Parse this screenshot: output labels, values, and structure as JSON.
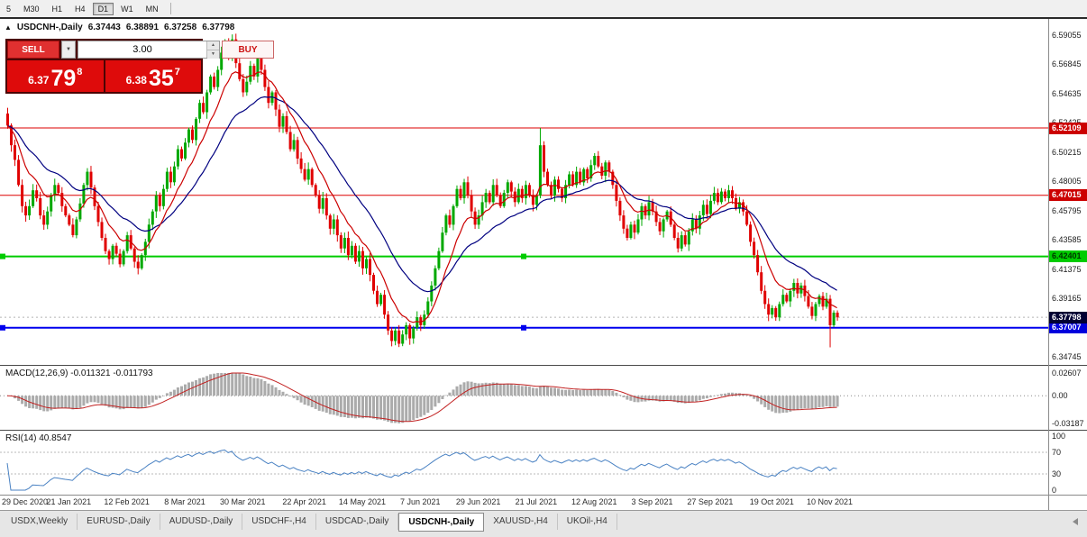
{
  "toolbar": {
    "buttons": [
      {
        "label": "5",
        "selected": false
      },
      {
        "label": "M30",
        "selected": false
      },
      {
        "label": "H1",
        "selected": false
      },
      {
        "label": "H4",
        "selected": false
      },
      {
        "label": "D1",
        "selected": true
      },
      {
        "label": "W1",
        "selected": false
      },
      {
        "label": "MN",
        "selected": false
      }
    ]
  },
  "chart": {
    "window_icon": "▲",
    "symbol": "USDCNH-,Daily",
    "ohlc": {
      "open": "6.37443",
      "high": "6.38891",
      "low": "6.37258",
      "close": "6.37798"
    },
    "trade_panel": {
      "sell_label": "SELL",
      "buy_label": "BUY",
      "lot_value": "3.00",
      "dropdown_icon": "▼",
      "spin_up_icon": "▲",
      "spin_down_icon": "▼",
      "sell_price": {
        "prefix": "6.37",
        "big": "79",
        "sup": "8"
      },
      "buy_price": {
        "prefix": "6.38",
        "big": "35",
        "sup": "7"
      }
    },
    "price_axis_labels": [
      "6.59055",
      "6.56845",
      "6.54635",
      "6.52425",
      "6.50215",
      "6.48005",
      "6.45795",
      "6.43585",
      "6.41375",
      "6.39165",
      "6.36955",
      "6.34745"
    ],
    "axis": {
      "top_price": 6.59055,
      "bottom_price": 6.34745
    },
    "hlines": [
      {
        "price": 6.52109,
        "label": "6.52109",
        "color": "#dd0000",
        "tag_bg": "#cc0000",
        "tag_fg": "#ffffff",
        "width": 1,
        "handle": false
      },
      {
        "price": 6.47015,
        "label": "6.47015",
        "color": "#dd0000",
        "tag_bg": "#cc0000",
        "tag_fg": "#ffffff",
        "width": 1,
        "handle": false
      },
      {
        "price": 6.42401,
        "label": "6.42401",
        "color": "#00cc00",
        "tag_bg": "#00cc00",
        "tag_fg": "#003300",
        "width": 2,
        "handle": true
      },
      {
        "price": 6.37007,
        "label": "6.37007",
        "color": "#0000ee",
        "tag_bg": "#0000dd",
        "tag_fg": "#ffffff",
        "width": 2,
        "handle": true
      }
    ],
    "current_price": {
      "value": 6.37798,
      "label": "6.37798",
      "tag_bg": "#000033",
      "tag_fg": "#ffffff"
    }
  },
  "chart_data": {
    "type": "candlestick",
    "symbol": "USDCNH",
    "timeframe": "Daily",
    "title": "USDCNH-,Daily",
    "ylim": [
      6.34745,
      6.59055
    ],
    "first_open": 6.532,
    "closes": [
      6.523,
      6.508,
      6.497,
      6.478,
      6.462,
      6.455,
      6.462,
      6.474,
      6.468,
      6.455,
      6.448,
      6.458,
      6.47,
      6.478,
      6.472,
      6.462,
      6.455,
      6.448,
      6.44,
      6.452,
      6.464,
      6.478,
      6.488,
      6.476,
      6.462,
      6.45,
      6.438,
      6.428,
      6.422,
      6.432,
      6.426,
      6.418,
      6.428,
      6.44,
      6.43,
      6.42,
      6.415,
      6.425,
      6.435,
      6.448,
      6.458,
      6.47,
      6.462,
      6.475,
      6.488,
      6.48,
      6.492,
      6.505,
      6.498,
      6.51,
      6.52,
      6.512,
      6.528,
      6.54,
      6.533,
      6.548,
      6.56,
      6.552,
      6.565,
      6.578,
      6.585,
      6.575,
      6.588,
      6.57,
      6.558,
      6.548,
      6.556,
      6.568,
      6.56,
      6.574,
      6.565,
      6.552,
      6.54,
      6.548,
      6.535,
      6.522,
      6.53,
      6.518,
      6.505,
      6.512,
      6.498,
      6.49,
      6.482,
      6.49,
      6.478,
      6.47,
      6.46,
      6.468,
      6.455,
      6.445,
      6.452,
      6.44,
      6.43,
      6.438,
      6.425,
      6.432,
      6.42,
      6.428,
      6.415,
      6.422,
      6.41,
      6.398,
      6.388,
      6.395,
      6.38,
      6.368,
      6.36,
      6.368,
      6.358,
      6.365,
      6.372,
      6.362,
      6.37,
      6.378,
      6.372,
      6.38,
      6.39,
      6.402,
      6.415,
      6.428,
      6.442,
      6.455,
      6.448,
      6.462,
      6.475,
      6.468,
      6.48,
      6.47,
      6.458,
      6.448,
      6.455,
      6.465,
      6.472,
      6.465,
      6.478,
      6.47,
      6.462,
      6.472,
      6.48,
      6.473,
      6.465,
      6.475,
      6.468,
      6.478,
      6.47,
      6.463,
      6.47,
      6.508,
      6.488,
      6.478,
      6.47,
      6.482,
      6.475,
      6.468,
      6.478,
      6.486,
      6.478,
      6.488,
      6.48,
      6.49,
      6.483,
      6.493,
      6.5,
      6.492,
      6.485,
      6.495,
      6.488,
      6.478,
      6.466,
      6.455,
      6.445,
      6.438,
      6.448,
      6.442,
      6.452,
      6.462,
      6.455,
      6.465,
      6.458,
      6.45,
      6.443,
      6.452,
      6.458,
      6.448,
      6.438,
      6.43,
      6.44,
      6.433,
      6.443,
      6.452,
      6.445,
      6.455,
      6.463,
      6.456,
      6.466,
      6.472,
      6.465,
      6.473,
      6.468,
      6.474,
      6.468,
      6.46,
      6.465,
      6.458,
      6.448,
      6.435,
      6.425,
      6.412,
      6.398,
      6.388,
      6.38,
      6.385,
      6.378,
      6.388,
      6.395,
      6.39,
      6.398,
      6.404,
      6.396,
      6.402,
      6.394,
      6.386,
      6.379,
      6.388,
      6.394,
      6.386,
      6.392,
      6.372,
      6.3815,
      6.37798
    ],
    "wick_overrides": {
      "62": {
        "high": 6.5918
      },
      "106": {
        "low": 6.356
      },
      "108": {
        "low": 6.3555
      },
      "147": {
        "high": 6.5211
      },
      "227": {
        "low": 6.3553
      }
    },
    "x_labels": [
      {
        "text": "29 Dec 2020",
        "i": 0
      },
      {
        "text": "21 Jan 2021",
        "i": 17
      },
      {
        "text": "12 Feb 2021",
        "i": 33
      },
      {
        "text": "8 Mar 2021",
        "i": 49
      },
      {
        "text": "30 Mar 2021",
        "i": 65
      },
      {
        "text": "22 Apr 2021",
        "i": 82
      },
      {
        "text": "14 May 2021",
        "i": 98
      },
      {
        "text": "7 Jun 2021",
        "i": 114
      },
      {
        "text": "29 Jun 2021",
        "i": 130
      },
      {
        "text": "21 Jul 2021",
        "i": 146
      },
      {
        "text": "12 Aug 2021",
        "i": 162
      },
      {
        "text": "3 Sep 2021",
        "i": 178
      },
      {
        "text": "27 Sep 2021",
        "i": 194
      },
      {
        "text": "19 Oct 2021",
        "i": 211
      },
      {
        "text": "10 Nov 2021",
        "i": 227
      }
    ],
    "indicators": {
      "ma_fast_period": 10,
      "ma_fast_color": "#cc0000",
      "ma_slow_period": 25,
      "ma_slow_color": "#000080",
      "macd_params": [
        12,
        26,
        9
      ],
      "rsi_period": 14
    },
    "up_color": "#00a800",
    "down_color": "#e00000"
  },
  "macd_panel": {
    "label": "MACD(12,26,9) -0.011321 -0.011793",
    "axis_labels": [
      "0.02607",
      "0.00",
      "-0.03187"
    ],
    "range": {
      "max": 0.02607,
      "min": -0.03187
    },
    "histogram_color": "#ababab",
    "signal_color": "#c22222"
  },
  "rsi_panel": {
    "label": "RSI(14) 40.8547",
    "axis_labels": [
      "100",
      "70",
      "30",
      "0"
    ],
    "levels": [
      70,
      30
    ],
    "range": {
      "max": 100,
      "min": 0
    },
    "line_color": "#4a82c3"
  },
  "tabs": {
    "items": [
      {
        "label": "USDX,Weekly",
        "active": false
      },
      {
        "label": "EURUSD-,Daily",
        "active": false
      },
      {
        "label": "AUDUSD-,Daily",
        "active": false
      },
      {
        "label": "USDCHF-,H4",
        "active": false
      },
      {
        "label": "USDCAD-,Daily",
        "active": false
      },
      {
        "label": "USDCNH-,Daily",
        "active": true
      },
      {
        "label": "XAUUSD-,H4",
        "active": false
      },
      {
        "label": "UKOil-,H4",
        "active": false
      }
    ]
  }
}
